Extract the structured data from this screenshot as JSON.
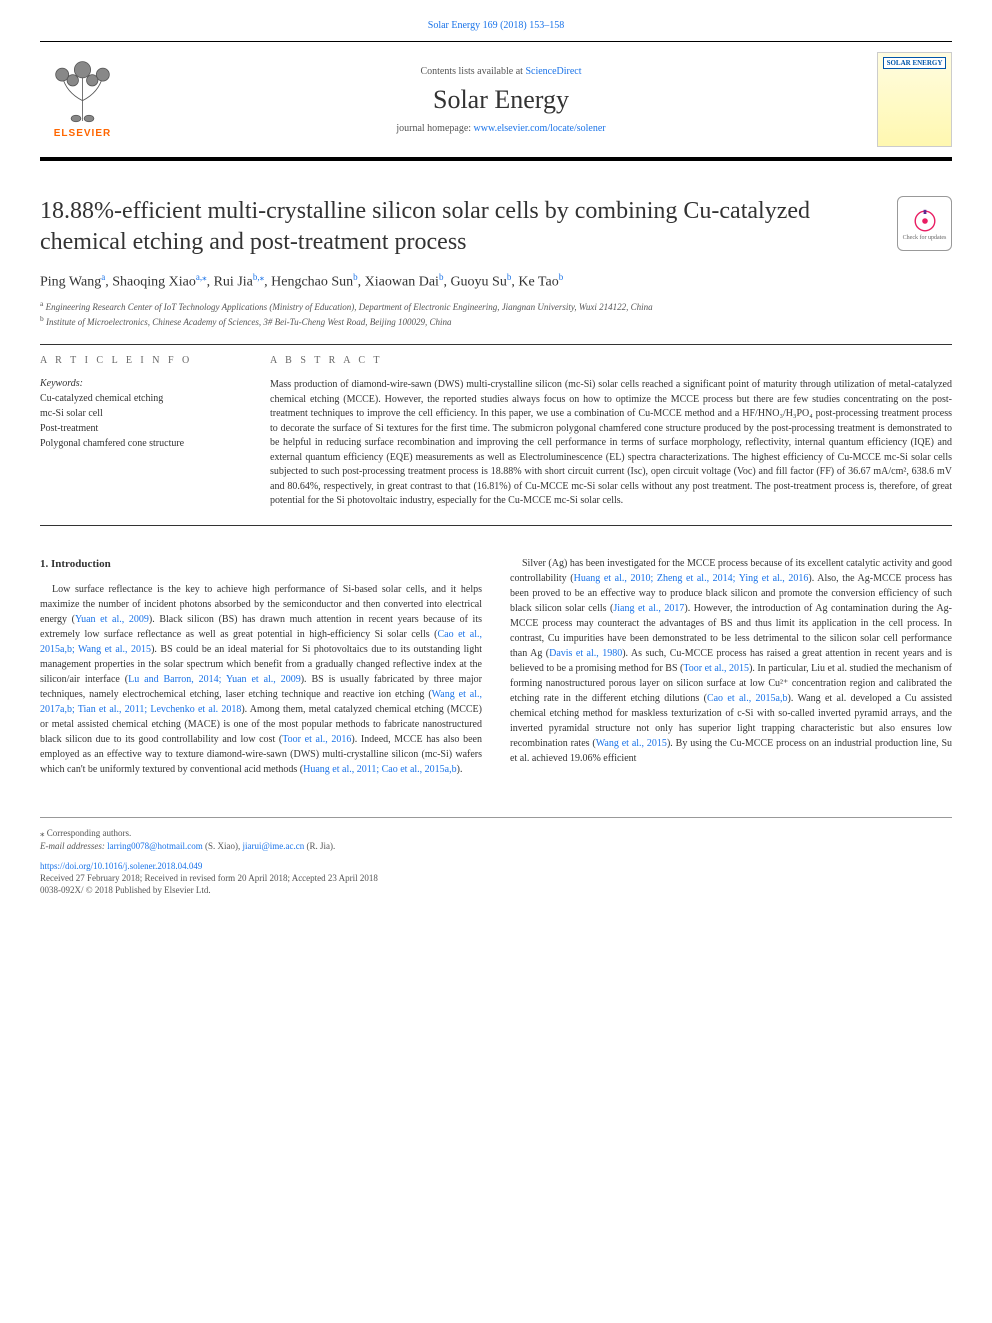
{
  "top_link": {
    "journal": "Solar Energy 169 (2018) 153–158",
    "url_text": "Solar Energy 169 (2018) 153–158"
  },
  "header": {
    "contents_prefix": "Contents lists available at ",
    "contents_link": "ScienceDirect",
    "journal_name": "Solar Energy",
    "homepage_prefix": "journal homepage: ",
    "homepage_link": "www.elsevier.com/locate/solener",
    "elsevier_label": "ELSEVIER",
    "cover_text": "SOLAR ENERGY"
  },
  "check_updates_label": "Check for updates",
  "article": {
    "title": "18.88%-efficient multi-crystalline silicon solar cells by combining Cu-catalyzed chemical etching and post-treatment process",
    "authors_html": [
      {
        "name": "Ping Wang",
        "sup": "a"
      },
      {
        "name": "Shaoqing Xiao",
        "sup": "a,⁎"
      },
      {
        "name": "Rui Jia",
        "sup": "b,⁎"
      },
      {
        "name": "Hengchao Sun",
        "sup": "b"
      },
      {
        "name": "Xiaowan Dai",
        "sup": "b"
      },
      {
        "name": "Guoyu Su",
        "sup": "b"
      },
      {
        "name": "Ke Tao",
        "sup": "b"
      }
    ],
    "affiliations": [
      {
        "sup": "a",
        "text": "Engineering Research Center of IoT Technology Applications (Ministry of Education), Department of Electronic Engineering, Jiangnan University, Wuxi 214122, China"
      },
      {
        "sup": "b",
        "text": "Institute of Microelectronics, Chinese Academy of Sciences, 3# Bei-Tu-Cheng West Road, Beijing 100029, China"
      }
    ]
  },
  "info": {
    "label": "A R T I C L E  I N F O",
    "keywords_label": "Keywords:",
    "keywords": [
      "Cu-catalyzed chemical etching",
      "mc-Si solar cell",
      "Post-treatment",
      "Polygonal chamfered cone structure"
    ]
  },
  "abstract": {
    "label": "A B S T R A C T",
    "text": "Mass production of diamond-wire-sawn (DWS) multi-crystalline silicon (mc-Si) solar cells reached a significant point of maturity through utilization of metal-catalyzed chemical etching (MCCE). However, the reported studies always focus on how to optimize the MCCE process but there are few studies concentrating on the post-treatment techniques to improve the cell efficiency. In this paper, we use a combination of Cu-MCCE method and a HF/HNO₃/H₃PO₄ post-processing treatment process to decorate the surface of Si textures for the first time. The submicron polygonal chamfered cone structure produced by the post-processing treatment is demonstrated to be helpful in reducing surface recombination and improving the cell performance in terms of surface morphology, reflectivity, internal quantum efficiency (IQE) and external quantum efficiency (EQE) measurements as well as Electroluminescence (EL) spectra characterizations. The highest efficiency of Cu-MCCE mc-Si solar cells subjected to such post-processing treatment process is 18.88% with short circuit current (Isc), open circuit voltage (Voc) and fill factor (FF) of 36.67 mA/cm², 638.6 mV and 80.64%, respectively, in great contrast to that (16.81%) of Cu-MCCE mc-Si solar cells without any post treatment. The post-treatment process is, therefore, of great potential for the Si photovoltaic industry, especially for the Cu-MCCE mc-Si solar cells."
  },
  "body": {
    "section_heading": "1. Introduction",
    "col1_p1": "Low surface reflectance is the key to achieve high performance of Si-based solar cells, and it helps maximize the number of incident photons absorbed by the semiconductor and then converted into electrical energy (Yuan et al., 2009). Black silicon (BS) has drawn much attention in recent years because of its extremely low surface reflectance as well as great potential in high-efficiency Si solar cells (Cao et al., 2015a,b; Wang et al., 2015). BS could be an ideal material for Si photovoltaics due to its outstanding light management properties in the solar spectrum which benefit from a gradually changed reflective index at the silicon/air interface (Lu and Barron, 2014; Yuan et al., 2009). BS is usually fabricated by three major techniques, namely electrochemical etching, laser etching technique and reactive ion etching (Wang et al., 2017a,b; Tian et al., 2011; Levchenko et al. 2018). Among them, metal catalyzed chemical etching (MCCE) or metal assisted chemical etching (MACE) is one of the most popular methods to fabricate nanostructured black silicon due to its good controllability and low cost (Toor et al., 2016). Indeed, MCCE has also been employed as an effective way to texture diamond-wire-sawn (DWS) multi-crystalline silicon (mc-Si) wafers which can't be uniformly textured by conventional acid methods",
    "col2_p1_prefix": "(Huang et al., 2011; Cao et al., 2015a,b).",
    "col2_p2": "Silver (Ag) has been investigated for the MCCE process because of its excellent catalytic activity and good controllability (Huang et al., 2010; Zheng et al., 2014; Ying et al., 2016). Also, the Ag-MCCE process has been proved to be an effective way to produce black silicon and promote the conversion efficiency of such black silicon solar cells (Jiang et al., 2017). However, the introduction of Ag contamination during the Ag-MCCE process may counteract the advantages of BS and thus limit its application in the cell process. In contrast, Cu impurities have been demonstrated to be less detrimental to the silicon solar cell performance than Ag (Davis et al., 1980). As such, Cu-MCCE process has raised a great attention in recent years and is believed to be a promising method for BS (Toor et al., 2015). In particular, Liu et al. studied the mechanism of forming nanostructured porous layer on silicon surface at low Cu²⁺ concentration region and calibrated the etching rate in the different etching dilutions (Cao et al., 2015a,b). Wang et al. developed a Cu assisted chemical etching method for maskless texturization of c-Si with so-called inverted pyramid arrays, and the inverted pyramidal structure not only has superior light trapping characteristic but also ensures low recombination rates (Wang et al., 2015). By using the Cu-MCCE process on an industrial production line, Su et al. achieved 19.06% efficient"
  },
  "footer": {
    "corr_label": "⁎ Corresponding authors.",
    "email_label": "E-mail addresses: ",
    "email1": "larring0078@hotmail.com",
    "email1_who": " (S. Xiao), ",
    "email2": "jiarui@ime.ac.cn",
    "email2_who": " (R. Jia).",
    "doi": "https://doi.org/10.1016/j.solener.2018.04.049",
    "received": "Received 27 February 2018; Received in revised form 20 April 2018; Accepted 23 April 2018",
    "issn": "0038-092X/ © 2018 Published by Elsevier Ltd."
  },
  "colors": {
    "link": "#1a73e8",
    "elsevier_orange": "#ff6600",
    "text": "#333333",
    "muted": "#555555",
    "divider": "#333333"
  },
  "typography": {
    "title_fontsize": 24,
    "journal_fontsize": 26,
    "body_fontsize": 10,
    "authors_fontsize": 14,
    "affil_fontsize": 9
  }
}
